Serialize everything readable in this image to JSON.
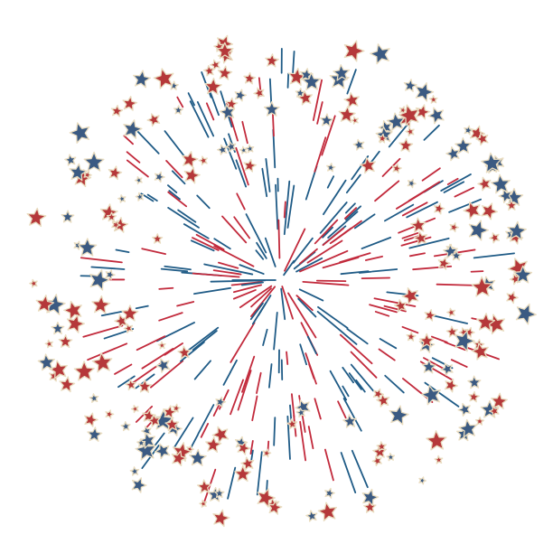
{
  "illustration": {
    "subject": "star-firework-burst",
    "colors": {
      "background": "#ffffff",
      "star_blue": "#3b5a82",
      "star_red": "#b5383a",
      "star_outline": "#e9dcc0",
      "line_blue": "#1f5b86",
      "line_red": "#c22a3c"
    }
  }
}
